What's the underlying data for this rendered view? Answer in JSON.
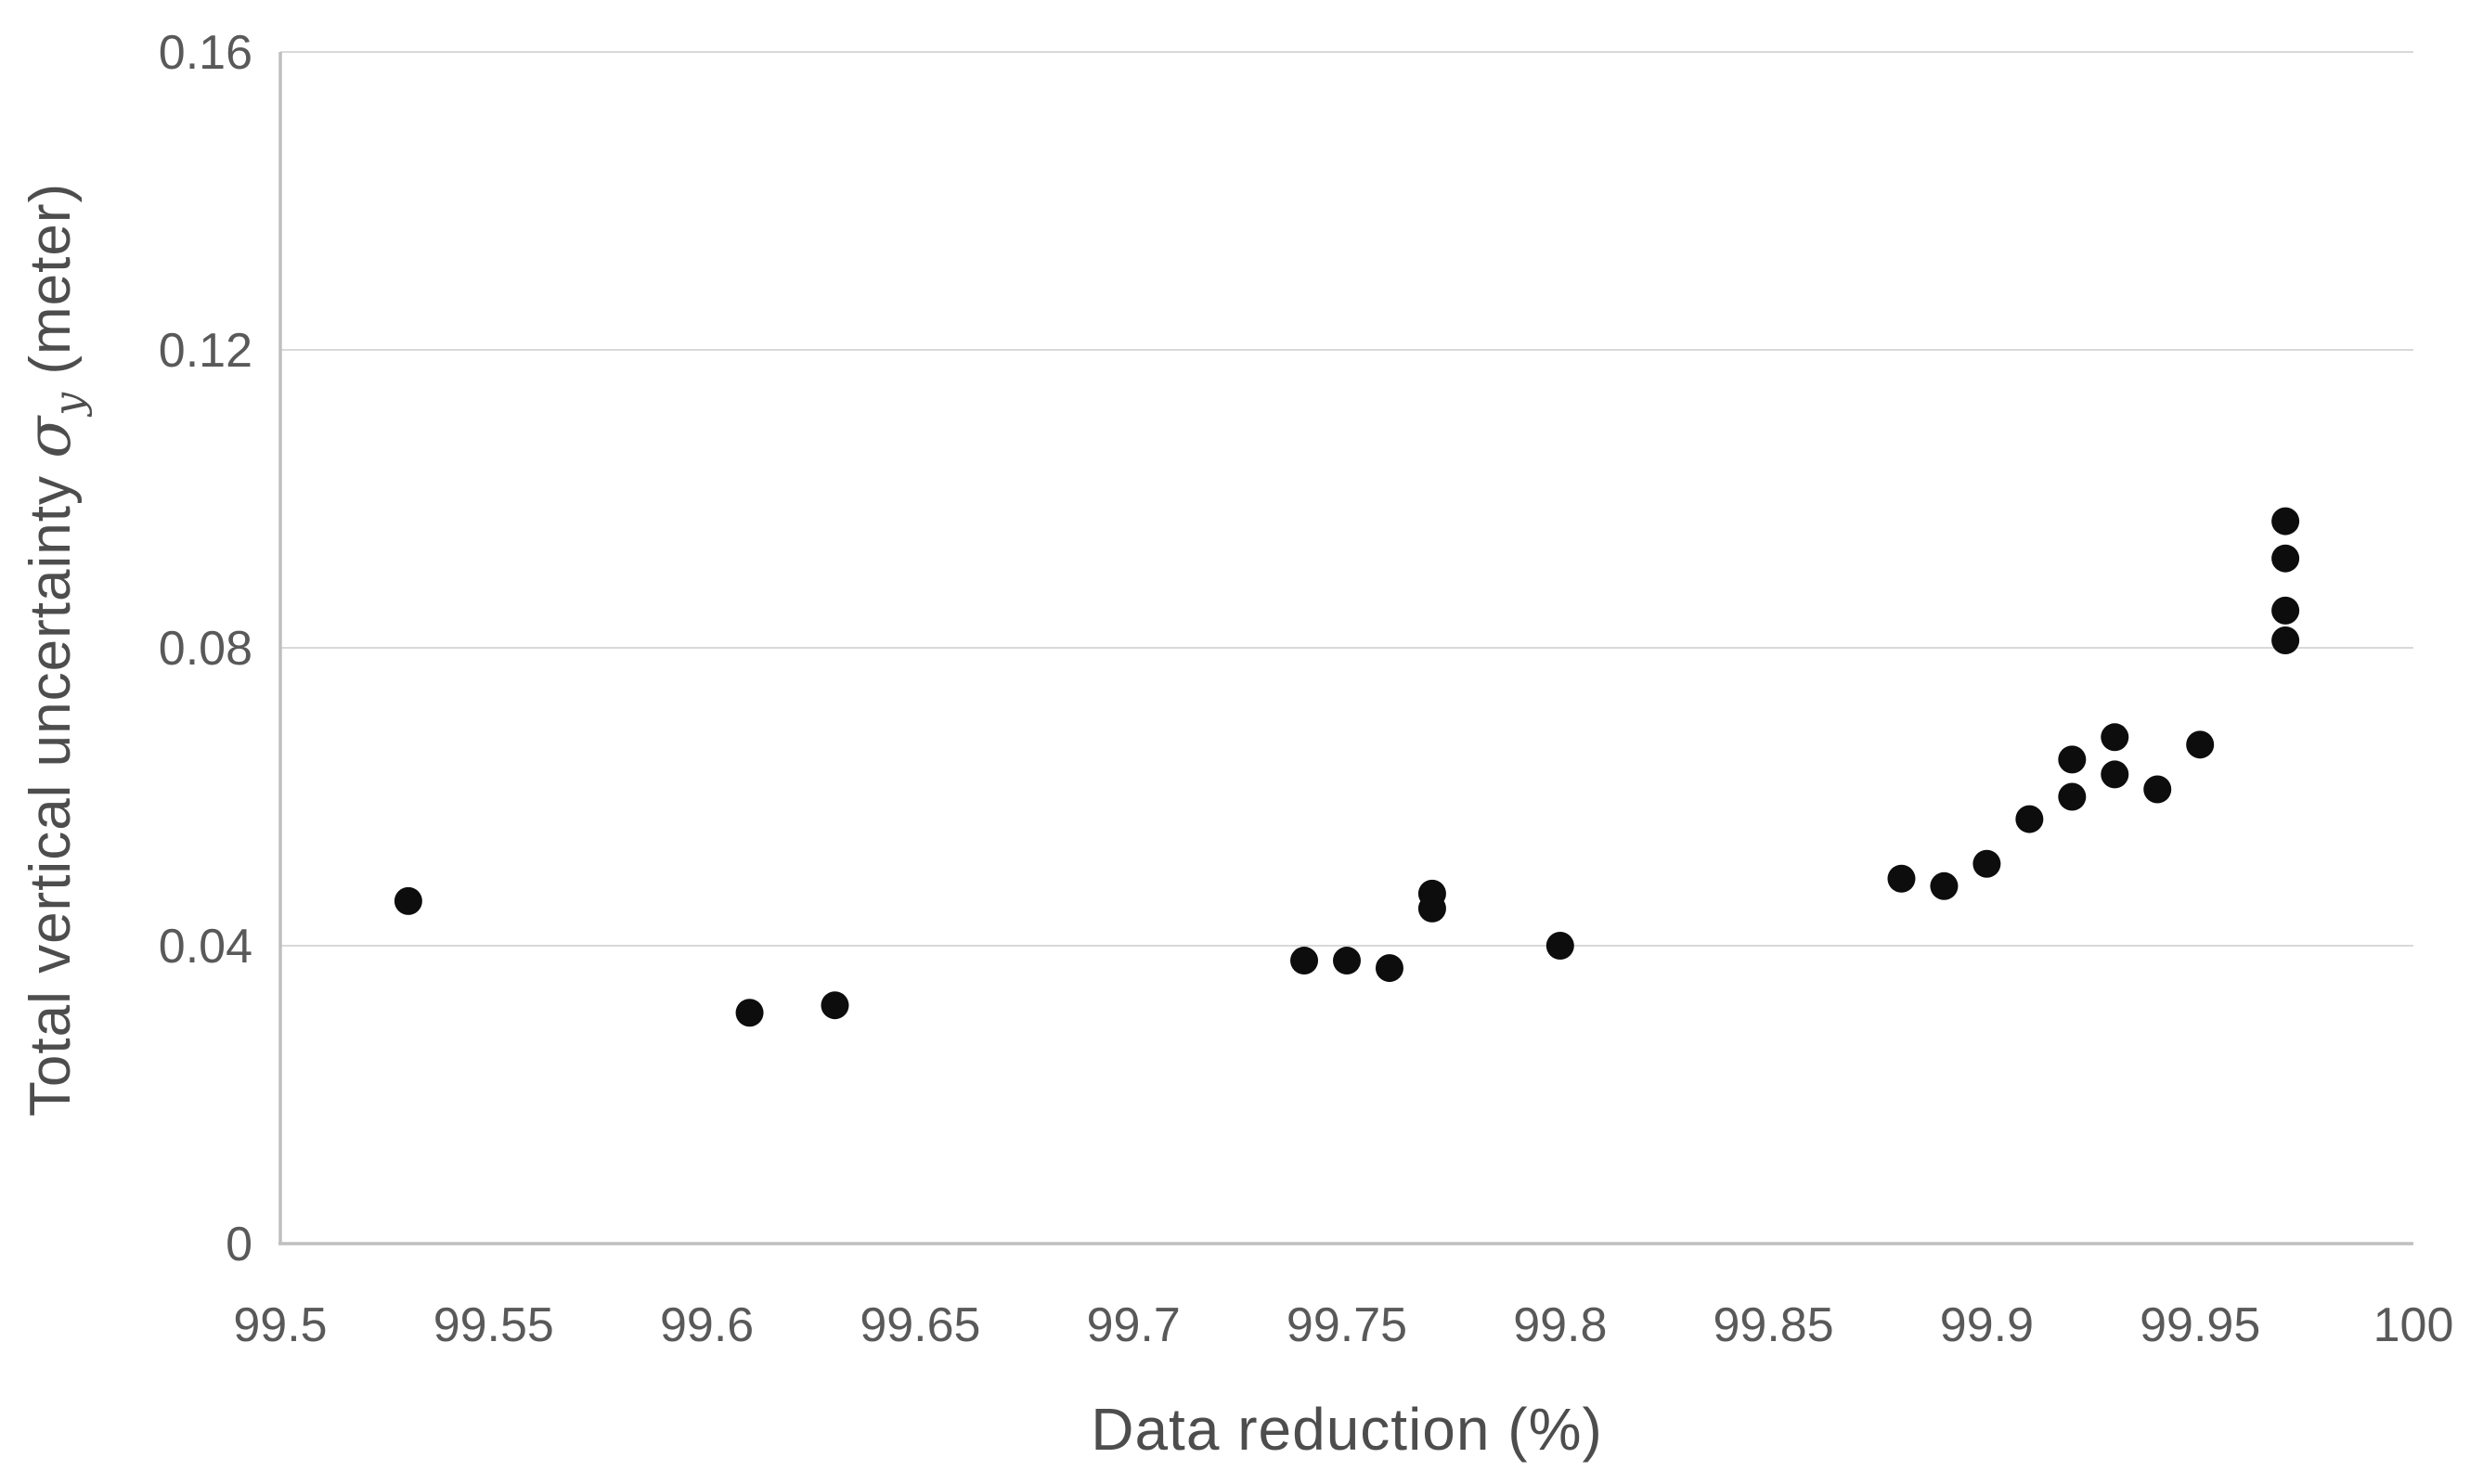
{
  "colors": {
    "background": "#ffffff",
    "gridline": "#d9d9d9",
    "axis_line": "#bfbfbf",
    "tick_text": "#595959",
    "title_text": "#4d4d4d",
    "marker": "#0d0d0d"
  },
  "chart_data": {
    "type": "scatter",
    "xlabel": "Data reduction (%)",
    "ylabel": {
      "prefix": "Total vertical uncertainty ",
      "symbol": "σ",
      "symbol_subscript": "y",
      "suffix": " (meter)"
    },
    "xlim": [
      99.5,
      100
    ],
    "ylim": [
      0,
      0.16
    ],
    "grid": "horizontal",
    "legend": "none",
    "marker": {
      "shape": "circle",
      "color": "#0d0d0d",
      "radius_px": 15
    },
    "xticks": [
      {
        "value": 99.5,
        "label": "99.5"
      },
      {
        "value": 99.55,
        "label": "99.55"
      },
      {
        "value": 99.6,
        "label": "99.6"
      },
      {
        "value": 99.65,
        "label": "99.65"
      },
      {
        "value": 99.7,
        "label": "99.7"
      },
      {
        "value": 99.75,
        "label": "99.75"
      },
      {
        "value": 99.8,
        "label": "99.8"
      },
      {
        "value": 99.85,
        "label": "99.85"
      },
      {
        "value": 99.9,
        "label": "99.9"
      },
      {
        "value": 99.95,
        "label": "99.95"
      },
      {
        "value": 100,
        "label": "100"
      }
    ],
    "yticks": [
      {
        "value": 0,
        "label": "0"
      },
      {
        "value": 0.04,
        "label": "0.04"
      },
      {
        "value": 0.08,
        "label": "0.08"
      },
      {
        "value": 0.12,
        "label": "0.12"
      },
      {
        "value": 0.16,
        "label": "0.16"
      }
    ],
    "series": [
      {
        "name": "",
        "points": [
          {
            "x": 99.53,
            "y": 0.046
          },
          {
            "x": 99.61,
            "y": 0.031
          },
          {
            "x": 99.63,
            "y": 0.032
          },
          {
            "x": 99.74,
            "y": 0.038
          },
          {
            "x": 99.75,
            "y": 0.038
          },
          {
            "x": 99.76,
            "y": 0.037
          },
          {
            "x": 99.77,
            "y": 0.045
          },
          {
            "x": 99.77,
            "y": 0.047
          },
          {
            "x": 99.8,
            "y": 0.04
          },
          {
            "x": 99.88,
            "y": 0.049
          },
          {
            "x": 99.89,
            "y": 0.048
          },
          {
            "x": 99.9,
            "y": 0.051
          },
          {
            "x": 99.91,
            "y": 0.057
          },
          {
            "x": 99.92,
            "y": 0.06
          },
          {
            "x": 99.92,
            "y": 0.065
          },
          {
            "x": 99.93,
            "y": 0.063
          },
          {
            "x": 99.93,
            "y": 0.068
          },
          {
            "x": 99.94,
            "y": 0.061
          },
          {
            "x": 99.95,
            "y": 0.067
          },
          {
            "x": 99.97,
            "y": 0.081
          },
          {
            "x": 99.97,
            "y": 0.085
          },
          {
            "x": 99.97,
            "y": 0.092
          },
          {
            "x": 99.97,
            "y": 0.097
          }
        ]
      }
    ]
  }
}
